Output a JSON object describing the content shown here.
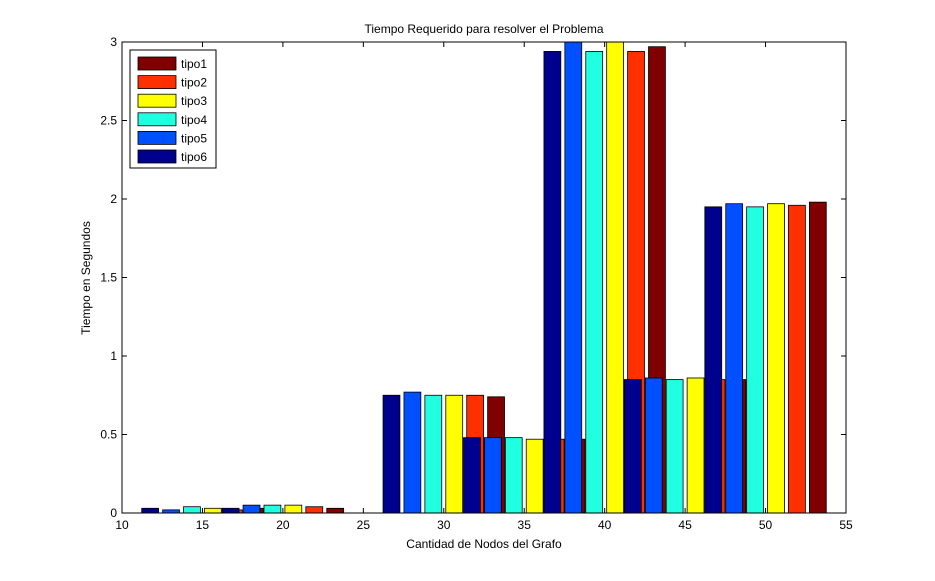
{
  "chart_data": {
    "type": "bar",
    "title": "Tiempo Requerido para resolver el Problema",
    "xlabel": "Cantidad de Nodos del Grafo",
    "ylabel": "Tiempo en Segundos",
    "xlim": [
      10,
      55
    ],
    "ylim": [
      0,
      3
    ],
    "xticks": [
      10,
      15,
      20,
      25,
      30,
      35,
      40,
      45,
      50,
      55
    ],
    "yticks": [
      0,
      0.5,
      1,
      1.5,
      2,
      2.5,
      3
    ],
    "grid": false,
    "legend_position": "top-left",
    "legend_order": [
      "tipo1",
      "tipo2",
      "tipo3",
      "tipo4",
      "tipo5",
      "tipo6"
    ],
    "categories": [
      15,
      20,
      25,
      30,
      35,
      40,
      45,
      50
    ],
    "series": [
      {
        "name": "tipo6",
        "color": "#00008f",
        "values": [
          0.03,
          0.03,
          0,
          0.75,
          0.48,
          2.94,
          0.85,
          1.95
        ]
      },
      {
        "name": "tipo5",
        "color": "#0050ff",
        "values": [
          0.02,
          0.05,
          0,
          0.77,
          0.48,
          3.0,
          0.86,
          1.97
        ]
      },
      {
        "name": "tipo4",
        "color": "#20ffdf",
        "values": [
          0.04,
          0.05,
          0,
          0.75,
          0.48,
          2.94,
          0.85,
          1.95
        ]
      },
      {
        "name": "tipo3",
        "color": "#ffff00",
        "values": [
          0.03,
          0.05,
          0,
          0.75,
          0.47,
          3.0,
          0.86,
          1.97
        ]
      },
      {
        "name": "tipo2",
        "color": "#ff3000",
        "values": [
          0.02,
          0.04,
          0,
          0.75,
          0.47,
          2.94,
          0.85,
          1.96
        ]
      },
      {
        "name": "tipo1",
        "color": "#800000",
        "values": [
          0.03,
          0.03,
          0,
          0.74,
          0.47,
          2.97,
          0.85,
          1.98
        ]
      }
    ]
  }
}
